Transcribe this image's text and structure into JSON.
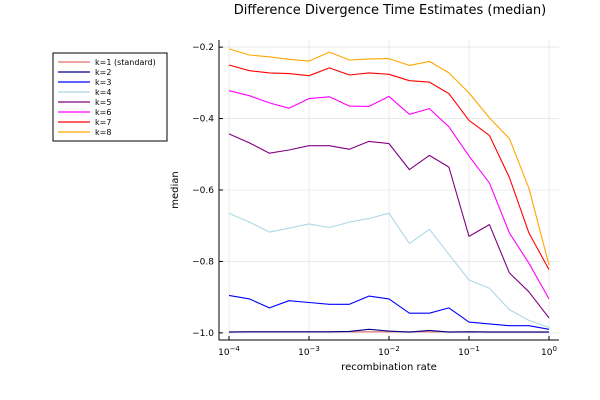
{
  "chart_data": {
    "type": "line",
    "title": "Difference Divergence Time Estimates (median)",
    "xlabel": "recombination rate",
    "ylabel": "median",
    "xscale": "log",
    "xlim": [
      0.0001,
      1
    ],
    "ylim": [
      -1.02,
      -0.18
    ],
    "grid": true,
    "legend_position": "outer-top-left",
    "xticks": [
      {
        "value": 0.0001,
        "base": "10",
        "exp": "−4"
      },
      {
        "value": 0.001,
        "base": "10",
        "exp": "−3"
      },
      {
        "value": 0.01,
        "base": "10",
        "exp": "−2"
      },
      {
        "value": 0.1,
        "base": "10",
        "exp": "−1"
      },
      {
        "value": 1,
        "base": "10",
        "exp": "0"
      }
    ],
    "yticks": [
      {
        "value": -1.0,
        "label": "−1.0"
      },
      {
        "value": -0.8,
        "label": "−0.8"
      },
      {
        "value": -0.6,
        "label": "−0.6"
      },
      {
        "value": -0.4,
        "label": "−0.4"
      },
      {
        "value": -0.2,
        "label": "−0.2"
      }
    ],
    "x": [
      0.0001,
      0.00018,
      0.00032,
      0.00056,
      0.001,
      0.0018,
      0.0032,
      0.0056,
      0.01,
      0.018,
      0.032,
      0.056,
      0.1,
      0.18,
      0.32,
      0.56,
      1.0
    ],
    "series": [
      {
        "name": "k=1 (standard)",
        "color": "#e26f6f",
        "values": [
          -0.997,
          -0.997,
          -0.997,
          -0.997,
          -0.997,
          -0.997,
          -0.997,
          -0.997,
          -0.997,
          -0.997,
          -0.997,
          -0.997,
          -0.997,
          -0.997,
          -0.997,
          -0.997,
          -0.997
        ]
      },
      {
        "name": "k=2",
        "color": "#00008b",
        "values": [
          -0.998,
          -0.997,
          -0.997,
          -0.997,
          -0.997,
          -0.997,
          -0.996,
          -0.99,
          -0.995,
          -0.998,
          -0.993,
          -0.998,
          -0.997,
          -0.998,
          -0.998,
          -0.998,
          -0.998
        ]
      },
      {
        "name": "k=3",
        "color": "#0000ff",
        "values": [
          -0.895,
          -0.905,
          -0.93,
          -0.91,
          -0.915,
          -0.92,
          -0.92,
          -0.897,
          -0.905,
          -0.945,
          -0.945,
          -0.93,
          -0.97,
          -0.975,
          -0.98,
          -0.98,
          -0.99
        ]
      },
      {
        "name": "k=4",
        "color": "#add8e6",
        "values": [
          -0.665,
          -0.69,
          -0.718,
          -0.707,
          -0.695,
          -0.705,
          -0.69,
          -0.68,
          -0.665,
          -0.75,
          -0.71,
          -0.78,
          -0.852,
          -0.875,
          -0.935,
          -0.965,
          -0.985
        ]
      },
      {
        "name": "k=5",
        "color": "#800080",
        "values": [
          -0.443,
          -0.468,
          -0.497,
          -0.488,
          -0.476,
          -0.476,
          -0.486,
          -0.464,
          -0.47,
          -0.543,
          -0.503,
          -0.536,
          -0.73,
          -0.697,
          -0.832,
          -0.885,
          -0.958
        ]
      },
      {
        "name": "k=6",
        "color": "#ff00ff",
        "values": [
          -0.322,
          -0.336,
          -0.356,
          -0.371,
          -0.344,
          -0.339,
          -0.365,
          -0.366,
          -0.338,
          -0.388,
          -0.372,
          -0.423,
          -0.505,
          -0.58,
          -0.72,
          -0.805,
          -0.905
        ]
      },
      {
        "name": "k=7",
        "color": "#ff0000",
        "values": [
          -0.25,
          -0.266,
          -0.272,
          -0.274,
          -0.28,
          -0.258,
          -0.278,
          -0.272,
          -0.276,
          -0.294,
          -0.298,
          -0.33,
          -0.405,
          -0.447,
          -0.565,
          -0.72,
          -0.823
        ]
      },
      {
        "name": "k=8",
        "color": "#ffa500",
        "values": [
          -0.205,
          -0.222,
          -0.227,
          -0.234,
          -0.239,
          -0.214,
          -0.236,
          -0.233,
          -0.232,
          -0.251,
          -0.24,
          -0.272,
          -0.328,
          -0.398,
          -0.456,
          -0.595,
          -0.81
        ]
      }
    ]
  }
}
